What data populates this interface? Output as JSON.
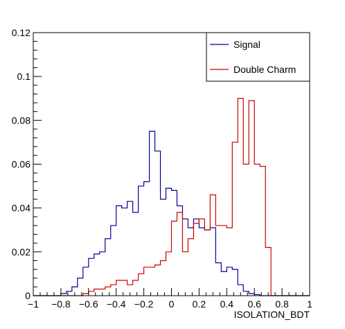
{
  "chart_data": {
    "type": "line",
    "subtype": "step-histogram",
    "xlabel": "ISOLATION_BDT",
    "ylabel": "",
    "xlim": [
      -1,
      1
    ],
    "ylim": [
      0,
      0.12
    ],
    "xticks": [
      "−1",
      "−0.8",
      "−0.6",
      "−0.4",
      "−0.2",
      "0",
      "0.2",
      "0.4",
      "0.6",
      "0.8",
      "1"
    ],
    "yticks": [
      "0",
      "0.02",
      "0.04",
      "0.06",
      "0.08",
      "0.1",
      "0.12"
    ],
    "bin_edges_start": -1,
    "bin_width": 0.04,
    "grid": false,
    "legend_position": "top-right",
    "series": [
      {
        "name": "Signal",
        "color": "#000099",
        "values": [
          0,
          0,
          0,
          0,
          0,
          0.001,
          0.002,
          0.004,
          0.008,
          0.013,
          0.017,
          0.019,
          0.02,
          0.026,
          0.032,
          0.041,
          0.04,
          0.043,
          0.038,
          0.05,
          0.052,
          0.075,
          0.066,
          0.044,
          0.049,
          0.048,
          0.041,
          0.035,
          0.031,
          0.035,
          0.031,
          0.03,
          0.031,
          0.015,
          0.011,
          0.013,
          0.012,
          0.005,
          0.002,
          0.001,
          0.0005,
          0,
          0,
          0,
          0,
          0,
          0,
          0,
          0,
          0
        ]
      },
      {
        "name": "Double Charm",
        "color": "#cc0000",
        "values": [
          0,
          0,
          0,
          0,
          0,
          0,
          0,
          0,
          0,
          0.001,
          0.002,
          0.003,
          0.003,
          0.004,
          0.005,
          0.007,
          0.007,
          0.005,
          0.007,
          0.01,
          0.013,
          0.013,
          0.014,
          0.016,
          0.02,
          0.034,
          0.038,
          0.02,
          0.026,
          0.033,
          0.035,
          0.03,
          0.046,
          0.032,
          0.032,
          0.031,
          0.07,
          0.09,
          0.06,
          0.089,
          0.06,
          0.059,
          0.022,
          0,
          0,
          0,
          0,
          0,
          0,
          0
        ]
      }
    ]
  }
}
